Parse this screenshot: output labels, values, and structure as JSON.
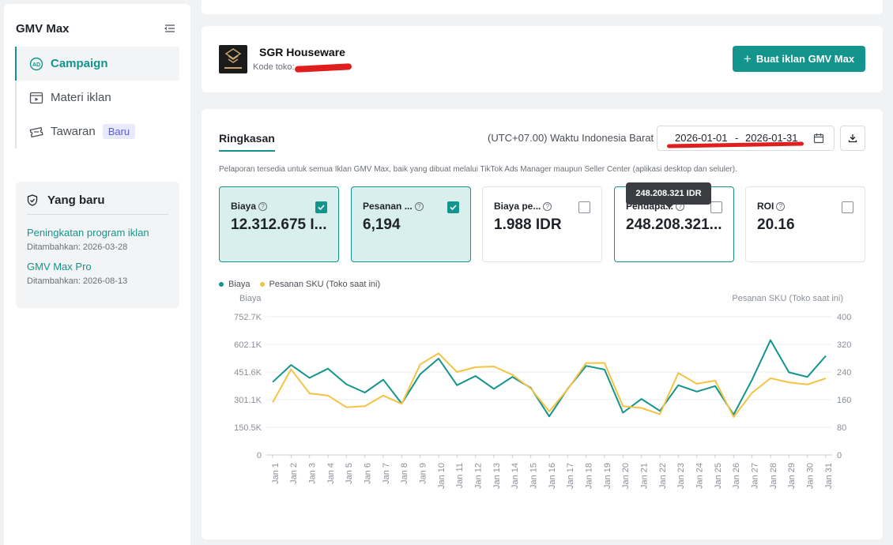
{
  "sidebar": {
    "title": "GMV Max",
    "nav": [
      {
        "label": "Campaign",
        "icon": "ad-icon"
      },
      {
        "label": "Materi iklan",
        "icon": "video-icon"
      },
      {
        "label": "Tawaran",
        "icon": "ticket-icon",
        "badge": "Baru"
      }
    ],
    "news": {
      "title": "Yang baru",
      "items": [
        {
          "title": "Peningkatan program iklan",
          "date": "Ditambahkan: 2026-03-28"
        },
        {
          "title": "GMV Max Pro",
          "date": "Ditambahkan: 2026-08-13"
        }
      ]
    }
  },
  "shop": {
    "name": "SGR Houseware",
    "code_label": "Kode toko:",
    "create_button": "Buat iklan GMV Max"
  },
  "summary": {
    "tab": "Ringkasan",
    "timezone": "(UTC+07.00) Waktu Indonesia Barat",
    "date_start": "2026-01-01",
    "date_sep": "-",
    "date_end": "2026-01-31",
    "note": "Pelaporan tersedia untuk semua Iklan GMV Max, baik yang dibuat melalui TikTok Ads Manager maupun Seller Center (aplikasi desktop dan seluler).",
    "tooltip": "248.208.321 IDR",
    "metrics": [
      {
        "label": "Biaya",
        "value": "12.312.675 I...",
        "checked": true
      },
      {
        "label": "Pesanan ...",
        "value": "6,194",
        "checked": true
      },
      {
        "label": "Biaya pe...",
        "value": "1.988 IDR",
        "checked": false
      },
      {
        "label": "Pendapa...",
        "value": "248.208.321...",
        "checked": false
      },
      {
        "label": "ROI",
        "value": "20.16",
        "checked": false
      }
    ]
  },
  "colors": {
    "accent": "#13948c",
    "series1": "#13948c",
    "series2": "#f5c342"
  },
  "chart_data": {
    "type": "line",
    "left_axis_title": "Biaya",
    "right_axis_title": "Pesanan SKU (Toko saat ini)",
    "y_left_ticks": [
      "0",
      "150.5K",
      "301.1K",
      "451.6K",
      "602.1K",
      "752.7K"
    ],
    "y_right_ticks": [
      "0",
      "80",
      "160",
      "240",
      "320",
      "400"
    ],
    "ylim_left": [
      0,
      752700
    ],
    "ylim_right": [
      0,
      400
    ],
    "categories": [
      "Jan 1",
      "Jan 2",
      "Jan 3",
      "Jan 4",
      "Jan 5",
      "Jan 6",
      "Jan 7",
      "Jan 8",
      "Jan 9",
      "Jan 10",
      "Jan 11",
      "Jan 12",
      "Jan 13",
      "Jan 14",
      "Jan 15",
      "Jan 16",
      "Jan 17",
      "Jan 18",
      "Jan 19",
      "Jan 20",
      "Jan 21",
      "Jan 22",
      "Jan 23",
      "Jan 24",
      "Jan 25",
      "Jan 26",
      "Jan 27",
      "Jan 28",
      "Jan 29",
      "Jan 30",
      "Jan 31"
    ],
    "series": [
      {
        "name": "Biaya",
        "axis": "left",
        "color": "#13948c",
        "values": [
          397000,
          490000,
          420000,
          470000,
          385000,
          340000,
          410000,
          280000,
          440000,
          525000,
          380000,
          430000,
          360000,
          425000,
          365000,
          210000,
          360000,
          485000,
          465000,
          230000,
          305000,
          240000,
          380000,
          345000,
          375000,
          220000,
          410000,
          625000,
          450000,
          425000,
          540000
        ]
      },
      {
        "name": "Pesanan SKU (Toko saat ini)",
        "axis": "right",
        "color": "#f5c342",
        "values": [
          152,
          248,
          178,
          172,
          138,
          141,
          172,
          148,
          262,
          294,
          240,
          254,
          256,
          232,
          192,
          126,
          190,
          266,
          266,
          141,
          136,
          118,
          237,
          206,
          215,
          110,
          180,
          222,
          210,
          204,
          222
        ]
      }
    ],
    "grid": true,
    "legend": "top-left"
  }
}
